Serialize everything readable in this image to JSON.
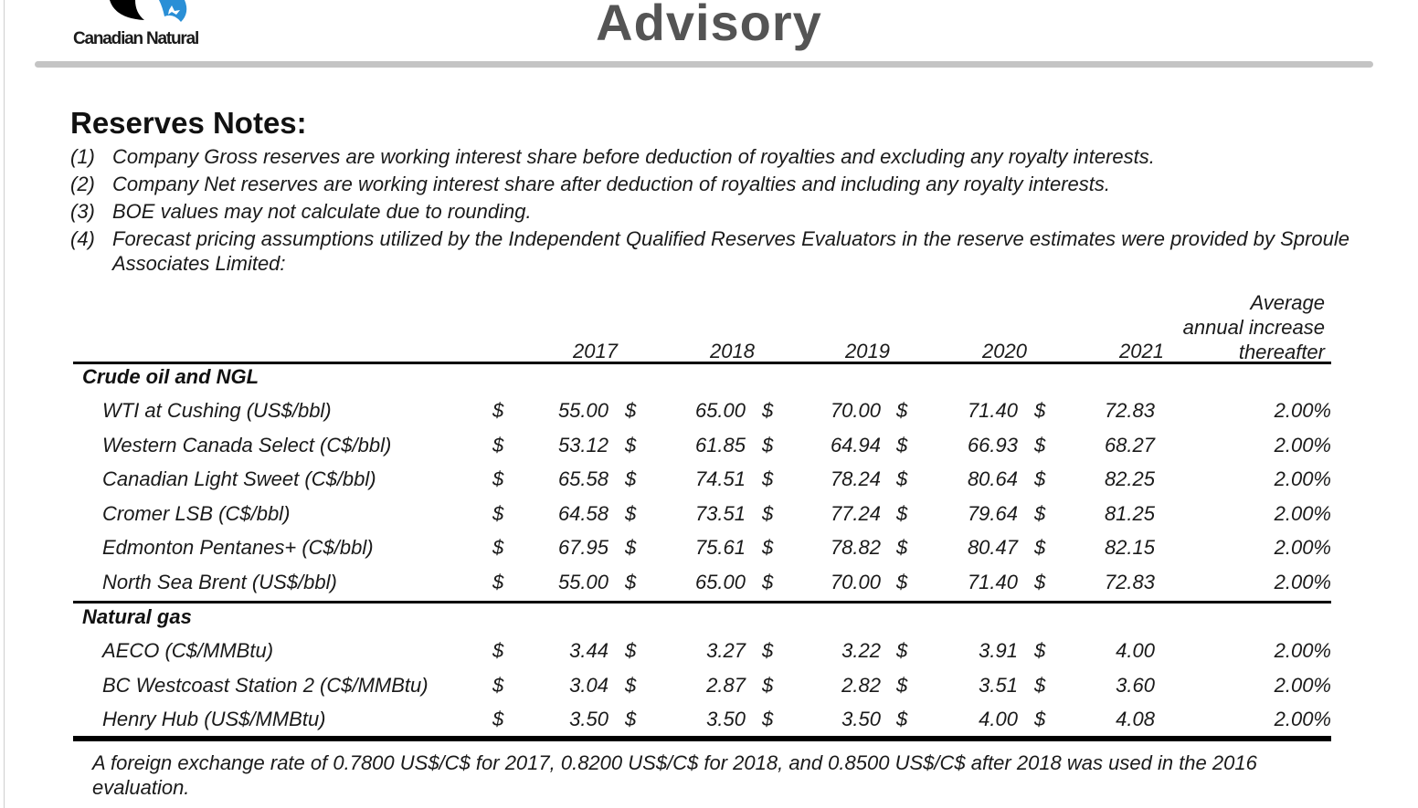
{
  "header": {
    "logo_text": "Canadian Natural",
    "title": "Advisory",
    "colors": {
      "logo_black": "#000000",
      "logo_blue": "#2a8fd6",
      "title_gray": "#545454",
      "rule_gray": "#c4c4c4"
    }
  },
  "section_title": "Reserves Notes:",
  "notes": [
    {
      "num": "(1)",
      "text": "Company Gross reserves are working interest share before deduction of royalties and excluding any royalty interests."
    },
    {
      "num": "(2)",
      "text": "Company Net reserves are working interest share after deduction of royalties and including any royalty interests."
    },
    {
      "num": "(3)",
      "text": "BOE values may not calculate due to rounding."
    },
    {
      "num": "(4)",
      "text": "Forecast pricing assumptions utilized by the Independent Qualified Reserves Evaluators in the reserve estimates were provided by Sproule  Associates Limited:"
    }
  ],
  "table": {
    "columns": [
      "2017",
      "2018",
      "2019",
      "2020",
      "2021"
    ],
    "last_column": [
      "Average",
      "annual increase",
      "thereafter"
    ],
    "currency_symbol": "$",
    "groups": [
      {
        "label": "Crude oil and NGL",
        "rows": [
          {
            "label": "WTI at Cushing (US$/bbl)",
            "values": [
              "55.00",
              "65.00",
              "70.00",
              "71.40",
              "72.83"
            ],
            "increase": "2.00%"
          },
          {
            "label": "Western Canada Select (C$/bbl)",
            "values": [
              "53.12",
              "61.85",
              "64.94",
              "66.93",
              "68.27"
            ],
            "increase": "2.00%"
          },
          {
            "label": "Canadian Light Sweet (C$/bbl)",
            "values": [
              "65.58",
              "74.51",
              "78.24",
              "80.64",
              "82.25"
            ],
            "increase": "2.00%"
          },
          {
            "label": "Cromer LSB (C$/bbl)",
            "values": [
              "64.58",
              "73.51",
              "77.24",
              "79.64",
              "81.25"
            ],
            "increase": "2.00%"
          },
          {
            "label": "Edmonton Pentanes+ (C$/bbl)",
            "values": [
              "67.95",
              "75.61",
              "78.82",
              "80.47",
              "82.15"
            ],
            "increase": "2.00%"
          },
          {
            "label": "North Sea Brent (US$/bbl)",
            "values": [
              "55.00",
              "65.00",
              "70.00",
              "71.40",
              "72.83"
            ],
            "increase": "2.00%"
          }
        ]
      },
      {
        "label": "Natural gas",
        "rows": [
          {
            "label": "AECO (C$/MMBtu)",
            "values": [
              "3.44",
              "3.27",
              "3.22",
              "3.91",
              "4.00"
            ],
            "increase": "2.00%"
          },
          {
            "label": "BC Westcoast Station 2 (C$/MMBtu)",
            "values": [
              "3.04",
              "2.87",
              "2.82",
              "3.51",
              "3.60"
            ],
            "increase": "2.00%"
          },
          {
            "label": "Henry Hub (US$/MMBtu)",
            "values": [
              "3.50",
              "3.50",
              "3.50",
              "4.00",
              "4.08"
            ],
            "increase": "2.00%"
          }
        ]
      }
    ]
  },
  "footnote": "A foreign exchange rate of 0.7800 US$/C$ for 2017, 0.8200 US$/C$ for 2018, and 0.8500 US$/C$ after 2018 was used in the 2016 evaluation."
}
